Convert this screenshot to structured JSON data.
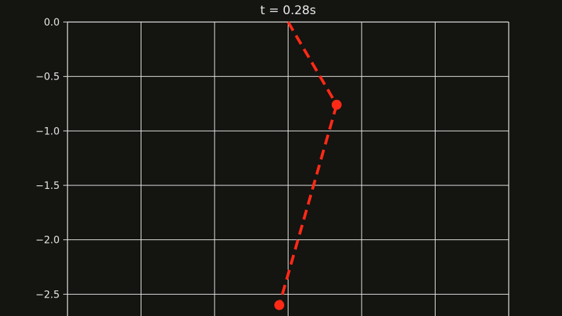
{
  "chart_data": {
    "type": "line",
    "title": "t = 0.28s",
    "xlabel": "",
    "ylabel": "",
    "xlim": [
      -1.5,
      1.5
    ],
    "ylim": [
      -2.7,
      0.0
    ],
    "yticks": [
      0.0,
      -0.5,
      -1.0,
      -1.5,
      -2.0,
      -2.5
    ],
    "ytick_labels": [
      "0.0",
      "−0.5",
      "−1.0",
      "−1.5",
      "−2.0",
      "−2.5"
    ],
    "xgrid_values": [
      -1.0,
      -0.5,
      0.0,
      0.5,
      1.0
    ],
    "grid": true,
    "series": [
      {
        "x": [
          0.0,
          0.33,
          -0.06
        ],
        "y": [
          0.0,
          -0.76,
          -2.6
        ],
        "line_style": "dashed",
        "marker": "circle",
        "markers_on": [
          1,
          2
        ]
      }
    ]
  },
  "colors": {
    "background": "#141411",
    "axes": "#e8e8e8",
    "grid": "#e8e8e8",
    "series": "#ff2a16"
  }
}
